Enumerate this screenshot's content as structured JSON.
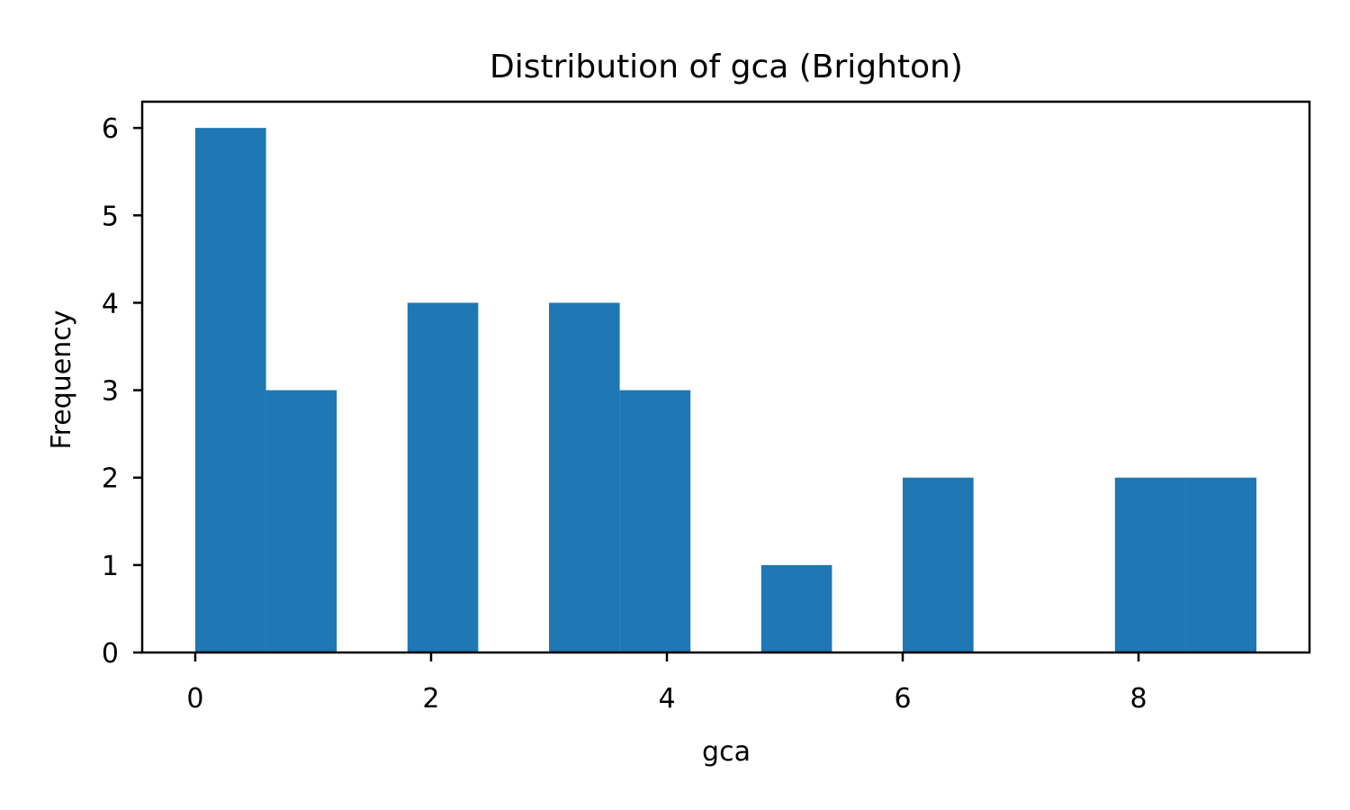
{
  "chart_data": {
    "type": "bar",
    "title": "Distribution of gca (Brighton)",
    "xlabel": "gca",
    "ylabel": "Frequency",
    "xlim": [
      -0.45,
      9.45
    ],
    "ylim": [
      0,
      6.3
    ],
    "x_ticks": [
      0,
      2,
      4,
      6,
      8
    ],
    "y_ticks": [
      0,
      1,
      2,
      3,
      4,
      5,
      6
    ],
    "bar_color": "#1f77b4",
    "grid": false,
    "bins": [
      {
        "x0": 0.0,
        "x1": 0.6,
        "value": 6
      },
      {
        "x0": 0.6,
        "x1": 1.2,
        "value": 3
      },
      {
        "x0": 1.2,
        "x1": 1.8,
        "value": 0
      },
      {
        "x0": 1.8,
        "x1": 2.4,
        "value": 4
      },
      {
        "x0": 2.4,
        "x1": 3.0,
        "value": 0
      },
      {
        "x0": 3.0,
        "x1": 3.6,
        "value": 4
      },
      {
        "x0": 3.6,
        "x1": 4.2,
        "value": 3
      },
      {
        "x0": 4.2,
        "x1": 4.8,
        "value": 0
      },
      {
        "x0": 4.8,
        "x1": 5.4,
        "value": 1
      },
      {
        "x0": 5.4,
        "x1": 6.0,
        "value": 0
      },
      {
        "x0": 6.0,
        "x1": 6.6,
        "value": 2
      },
      {
        "x0": 6.6,
        "x1": 7.2,
        "value": 0
      },
      {
        "x0": 7.2,
        "x1": 7.8,
        "value": 0
      },
      {
        "x0": 7.8,
        "x1": 8.4,
        "value": 2
      },
      {
        "x0": 8.4,
        "x1": 9.0,
        "value": 2
      }
    ]
  }
}
